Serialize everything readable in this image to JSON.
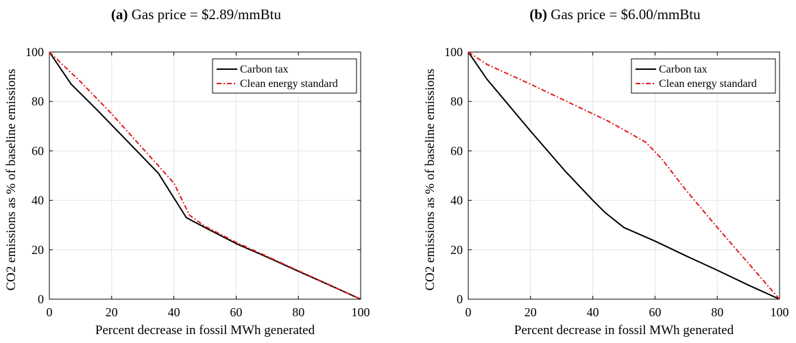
{
  "chart_data": [
    {
      "type": "line",
      "title_prefix": "(a)",
      "title": "Gas price = $2.89/mmBtu",
      "xlabel": "Percent decrease in fossil MWh generated",
      "ylabel": "CO2 emissions as % of baseline emissions",
      "xlim": [
        0,
        100
      ],
      "ylim": [
        0,
        100
      ],
      "xticks": [
        0,
        20,
        40,
        60,
        80,
        100
      ],
      "yticks": [
        0,
        20,
        40,
        60,
        80,
        100
      ],
      "grid": true,
      "legend_position": "top-right",
      "series": [
        {
          "name": "Carbon tax",
          "color": "#000000",
          "style": "solid",
          "x": [
            0,
            7,
            15,
            25,
            35,
            44,
            50,
            60,
            70,
            80,
            90,
            100
          ],
          "y": [
            100,
            87,
            77,
            64,
            51,
            33,
            29,
            22.5,
            17,
            11.3,
            5.7,
            0
          ]
        },
        {
          "name": "Clean energy standard",
          "color": "#e41a1c",
          "style": "dashdot",
          "x": [
            0,
            10,
            20,
            30,
            40,
            45,
            50,
            60,
            70,
            80,
            90,
            100
          ],
          "y": [
            100,
            88,
            75,
            61,
            47,
            34,
            29.5,
            23,
            17.3,
            11.5,
            5.8,
            0
          ]
        }
      ]
    },
    {
      "type": "line",
      "title_prefix": "(b)",
      "title": "Gas price = $6.00/mmBtu",
      "xlabel": "Percent decrease in fossil MWh generated",
      "ylabel": "CO2 emissions as % of baseline emissions",
      "xlim": [
        0,
        100
      ],
      "ylim": [
        0,
        100
      ],
      "xticks": [
        0,
        20,
        40,
        60,
        80,
        100
      ],
      "yticks": [
        0,
        20,
        40,
        60,
        80,
        100
      ],
      "grid": true,
      "legend_position": "top-right",
      "series": [
        {
          "name": "Carbon tax",
          "color": "#000000",
          "style": "solid",
          "x": [
            0,
            6,
            12,
            20,
            31,
            40,
            44,
            50,
            60,
            70,
            80,
            90,
            100
          ],
          "y": [
            100,
            89,
            80,
            68,
            52,
            40,
            35,
            29,
            23.5,
            17.5,
            11.7,
            5.7,
            0
          ]
        },
        {
          "name": "Clean energy standard",
          "color": "#e41a1c",
          "style": "dashdot",
          "x": [
            0,
            6,
            20,
            35,
            45,
            50,
            57,
            62,
            70,
            80,
            90,
            100
          ],
          "y": [
            100,
            95,
            87,
            78,
            72,
            68.5,
            63.5,
            57,
            44,
            29,
            14.5,
            0
          ]
        }
      ]
    }
  ]
}
